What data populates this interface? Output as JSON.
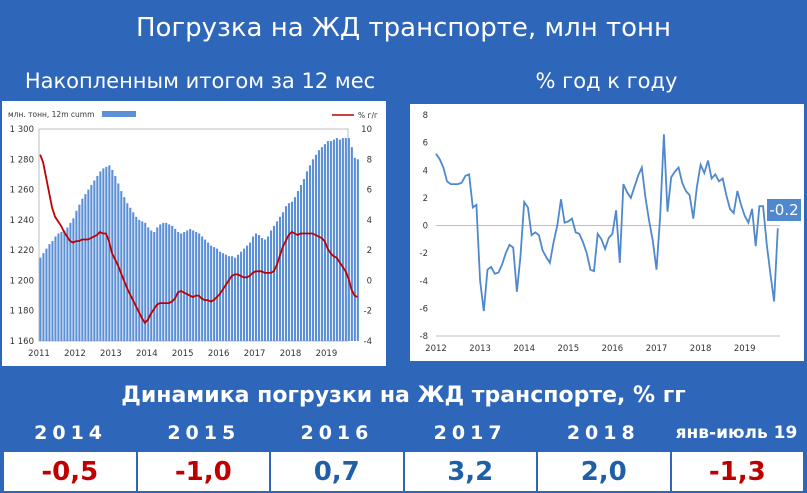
{
  "header": {
    "title": "Погрузка на ЖД транспорте, млн тонн",
    "left_subtitle": "Накопленным итогом за 12 мес",
    "right_subtitle": "% год к году"
  },
  "table": {
    "title": "Динамика погрузки на ЖД транспорте, % гг",
    "headers": [
      "2014",
      "2015",
      "2016",
      "2017",
      "2018",
      "янв-июль 19"
    ],
    "values": [
      "-0,5",
      "-1,0",
      "0,7",
      "3,2",
      "2,0",
      "-1,3"
    ],
    "value_colors": [
      "#c00000",
      "#c00000",
      "#1f5fa8",
      "#1f5fa8",
      "#1f5fa8",
      "#c00000"
    ]
  },
  "chart_data": [
    {
      "type": "bar",
      "legend": {
        "bars_label": "млн. тонн, 12m cumm",
        "line_label": "% г/г",
        "placement": "top"
      },
      "bar_color": "#5b8fd6",
      "line_color": "#c00000",
      "x_start": 2011.0,
      "x_step": 0.0833333,
      "x_ticks": [
        "2011",
        "2012",
        "2013",
        "2014",
        "2015",
        "2016",
        "2017",
        "2018",
        "2019"
      ],
      "xlim": [
        2011,
        2019.6
      ],
      "y_left_ticks": [
        "1 160",
        "1 180",
        "1 200",
        "1 220",
        "1 240",
        "1 260",
        "1 280",
        "1 300"
      ],
      "y_left_lim": [
        1160,
        1300
      ],
      "y_right_ticks": [
        "-4",
        "-2",
        "0",
        "2",
        "4",
        "6",
        "8",
        "10"
      ],
      "y_right_lim": [
        -4,
        10
      ],
      "bars": [
        1215,
        1218,
        1221,
        1224,
        1226,
        1229,
        1231,
        1232,
        1233,
        1235,
        1238,
        1241,
        1246,
        1250,
        1254,
        1257,
        1260,
        1263,
        1266,
        1269,
        1272,
        1274,
        1275,
        1276,
        1273,
        1269,
        1264,
        1259,
        1255,
        1251,
        1248,
        1245,
        1242,
        1240,
        1239,
        1238,
        1235,
        1233,
        1232,
        1235,
        1237,
        1238,
        1238,
        1237,
        1236,
        1234,
        1232,
        1231,
        1232,
        1233,
        1234,
        1233,
        1232,
        1231,
        1229,
        1227,
        1225,
        1223,
        1222,
        1221,
        1219,
        1218,
        1217,
        1216,
        1216,
        1215,
        1217,
        1219,
        1221,
        1223,
        1225,
        1229,
        1231,
        1230,
        1228,
        1227,
        1229,
        1233,
        1236,
        1239,
        1242,
        1245,
        1249,
        1251,
        1252,
        1255,
        1259,
        1263,
        1267,
        1272,
        1276,
        1280,
        1283,
        1286,
        1288,
        1290,
        1292,
        1292,
        1293,
        1294,
        1293,
        1294,
        1294,
        1294,
        1288,
        1281,
        1280
      ],
      "line": [
        8.3,
        7.8,
        6.8,
        5.8,
        4.8,
        4.2,
        3.9,
        3.6,
        3.2,
        2.9,
        2.6,
        2.5,
        2.6,
        2.6,
        2.7,
        2.7,
        2.7,
        2.8,
        2.9,
        3.0,
        3.2,
        3.1,
        3.1,
        2.6,
        1.8,
        1.4,
        1.0,
        0.5,
        0.0,
        -0.5,
        -0.9,
        -1.3,
        -1.7,
        -2.1,
        -2.5,
        -2.8,
        -2.6,
        -2.2,
        -1.9,
        -1.6,
        -1.5,
        -1.5,
        -1.5,
        -1.5,
        -1.4,
        -1.2,
        -0.8,
        -0.7,
        -0.8,
        -0.9,
        -1.0,
        -1.1,
        -1.0,
        -1.0,
        -1.2,
        -1.3,
        -1.3,
        -1.4,
        -1.3,
        -1.1,
        -0.9,
        -0.6,
        -0.3,
        0.0,
        0.3,
        0.4,
        0.4,
        0.3,
        0.2,
        0.2,
        0.3,
        0.5,
        0.6,
        0.6,
        0.6,
        0.5,
        0.5,
        0.5,
        0.6,
        1.0,
        1.6,
        2.2,
        2.6,
        3.0,
        3.2,
        3.1,
        3.0,
        3.1,
        3.1,
        3.1,
        3.1,
        3.1,
        3.0,
        2.9,
        2.8,
        2.6,
        2.1,
        1.8,
        1.6,
        1.5,
        1.2,
        0.9,
        0.6,
        0.1,
        -0.6,
        -1.0,
        -1.1
      ]
    },
    {
      "type": "line",
      "line_color": "#4f88cc",
      "x_start": 2012.0,
      "x_step": 0.0833333,
      "x_ticks": [
        "2012",
        "2013",
        "2014",
        "2015",
        "2016",
        "2017",
        "2018",
        "2019"
      ],
      "xlim": [
        2012,
        2019.8
      ],
      "y_ticks": [
        "-8",
        "-6",
        "-4",
        "-2",
        "0",
        "2",
        "4",
        "6",
        "8"
      ],
      "ylim": [
        -8,
        8
      ],
      "end_label": "-0.2",
      "values": [
        5.2,
        4.8,
        4.2,
        3.2,
        3.0,
        3.0,
        3.0,
        3.1,
        3.6,
        3.7,
        1.3,
        1.5,
        -4.0,
        -6.2,
        -3.2,
        -3.0,
        -3.5,
        -3.4,
        -2.8,
        -2.0,
        -1.4,
        -1.6,
        -4.8,
        -2.2,
        1.7,
        1.3,
        -0.7,
        -0.5,
        -0.7,
        -1.8,
        -2.3,
        -2.7,
        -1.2,
        0.0,
        1.9,
        0.2,
        0.3,
        0.5,
        -0.5,
        -0.6,
        -1.2,
        -2.0,
        -3.2,
        -3.3,
        -0.6,
        -1.0,
        -1.7,
        -0.9,
        -0.6,
        1.1,
        -2.7,
        3.0,
        2.4,
        2.0,
        2.8,
        3.6,
        4.2,
        2.0,
        0.3,
        -1.1,
        -3.2,
        0.7,
        6.6,
        1.0,
        3.5,
        3.9,
        4.2,
        3.1,
        2.5,
        2.2,
        0.5,
        2.8,
        4.4,
        3.8,
        4.7,
        3.4,
        3.7,
        3.2,
        3.4,
        2.2,
        1.2,
        0.9,
        2.5,
        1.5,
        0.7,
        0.2,
        1.2,
        -1.5,
        1.4,
        1.4,
        -1.4,
        -3.5,
        -5.5,
        -0.2
      ]
    }
  ]
}
